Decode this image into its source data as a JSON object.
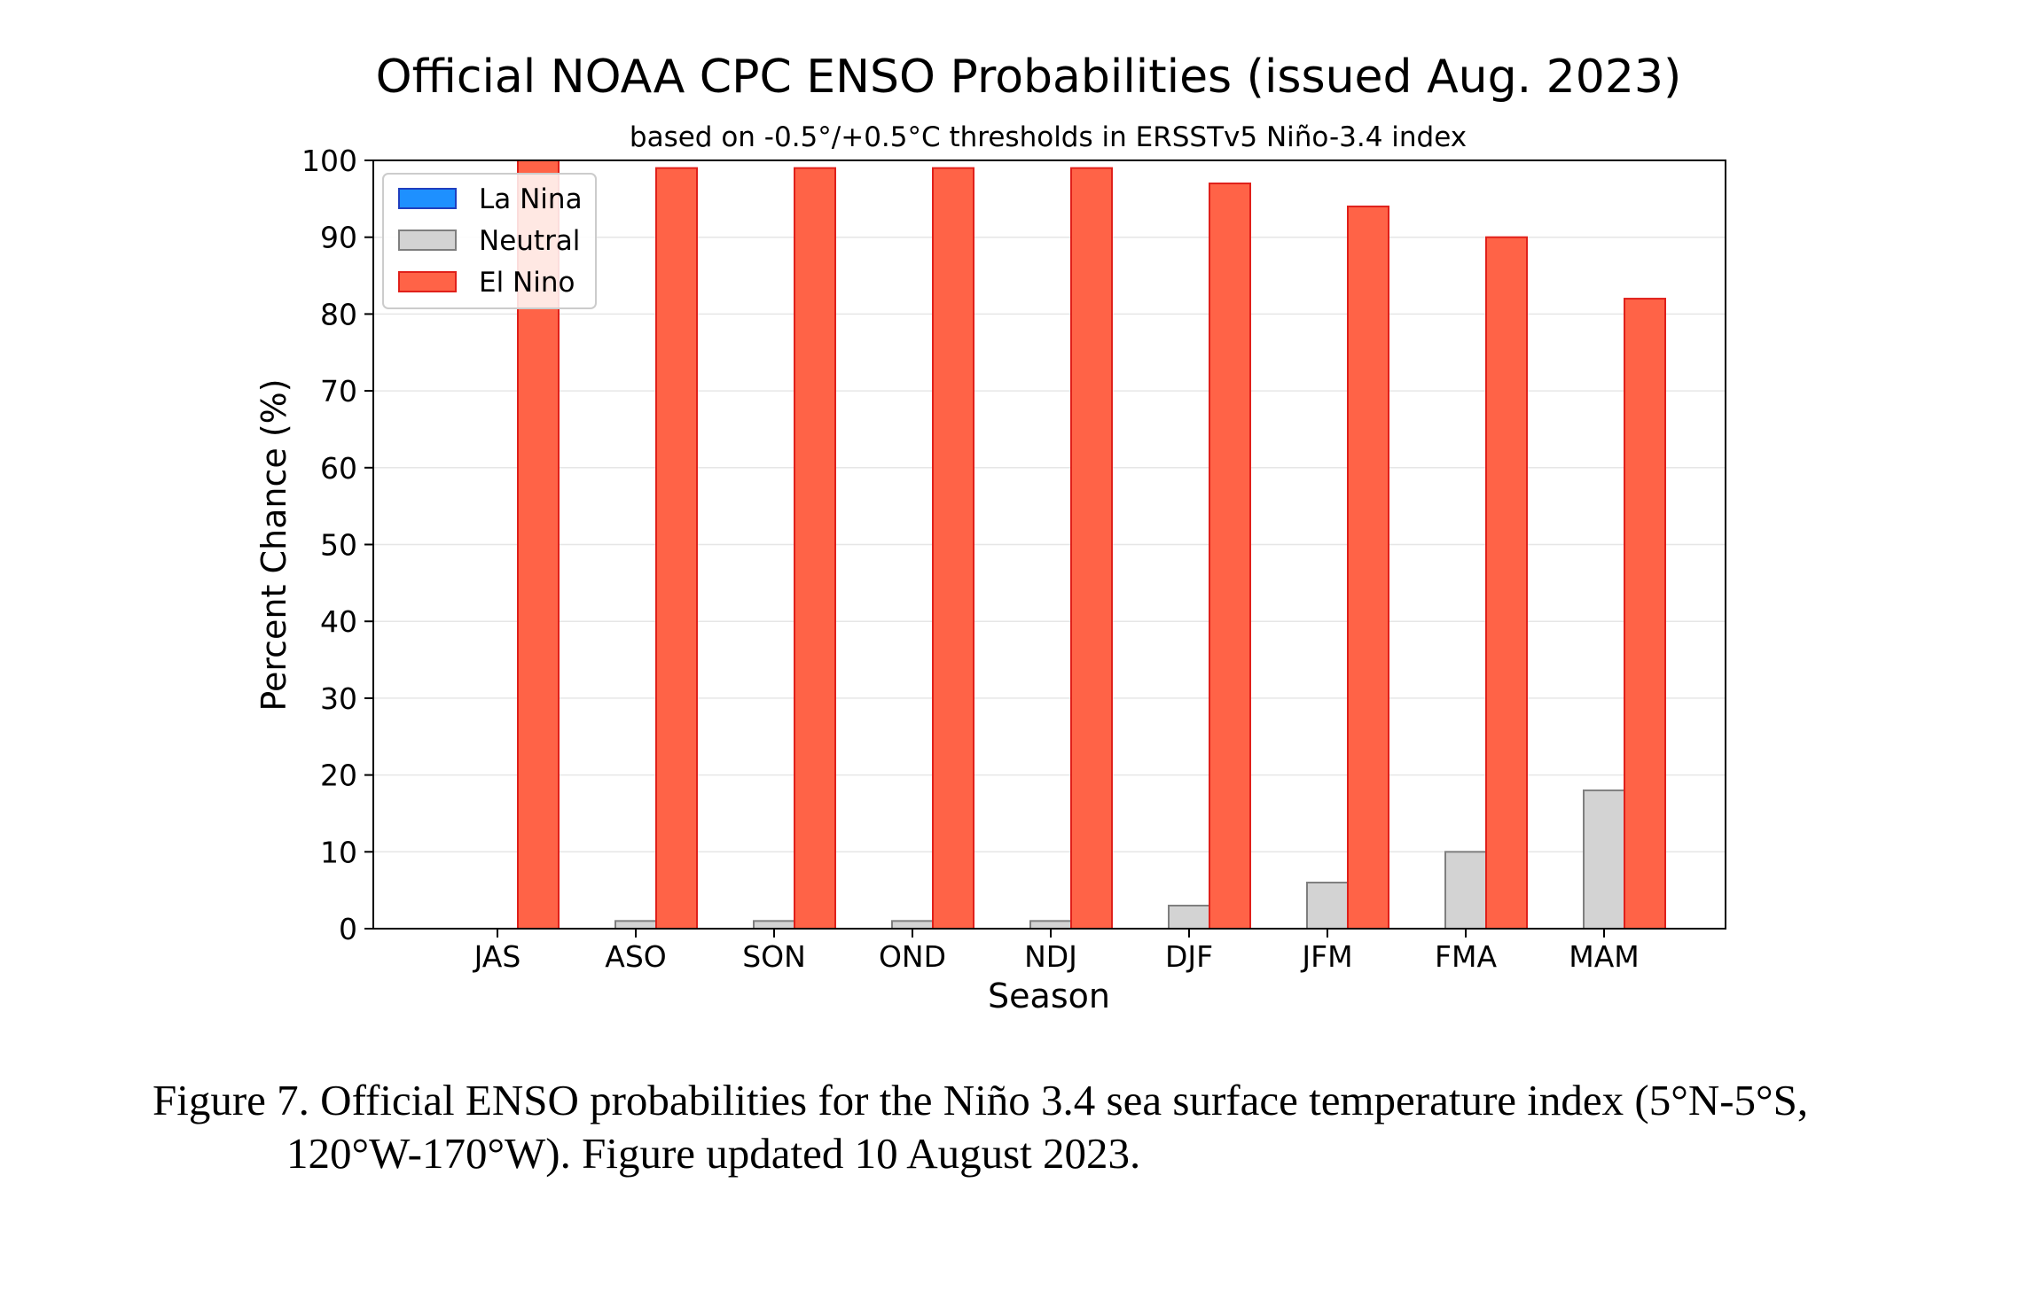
{
  "chart_data": {
    "type": "bar",
    "title": "Official NOAA CPC ENSO Probabilities (issued Aug. 2023)",
    "subtitle": "based on -0.5°/+0.5°C thresholds in ERSSTv5 Niño-3.4 index",
    "xlabel": "Season",
    "ylabel": "Percent Chance (%)",
    "ylim": [
      0,
      100
    ],
    "yticks": [
      0,
      10,
      20,
      30,
      40,
      50,
      60,
      70,
      80,
      90,
      100
    ],
    "grid": true,
    "legend_position": "top-left",
    "categories": [
      "JAS",
      "ASO",
      "SON",
      "OND",
      "NDJ",
      "DJF",
      "JFM",
      "FMA",
      "MAM"
    ],
    "series": [
      {
        "name": "La Nina",
        "color": "#1e90ff",
        "edge": "#1f3fbf",
        "values": [
          0,
          0,
          0,
          0,
          0,
          0,
          0,
          0,
          0
        ]
      },
      {
        "name": "Neutral",
        "color": "#d3d3d3",
        "edge": "#7f7f7f",
        "values": [
          0,
          1,
          1,
          1,
          1,
          3,
          6,
          10,
          18
        ]
      },
      {
        "name": "El Nino",
        "color": "#ff6347",
        "edge": "#e0201a",
        "values": [
          100,
          99,
          99,
          99,
          99,
          97,
          94,
          90,
          82
        ]
      }
    ]
  },
  "caption": {
    "line1": "Figure 7. Official ENSO probabilities for the Niño 3.4 sea surface temperature index (5°N-5°S,",
    "line2": "120°W-170°W). Figure updated 10 August 2023."
  }
}
